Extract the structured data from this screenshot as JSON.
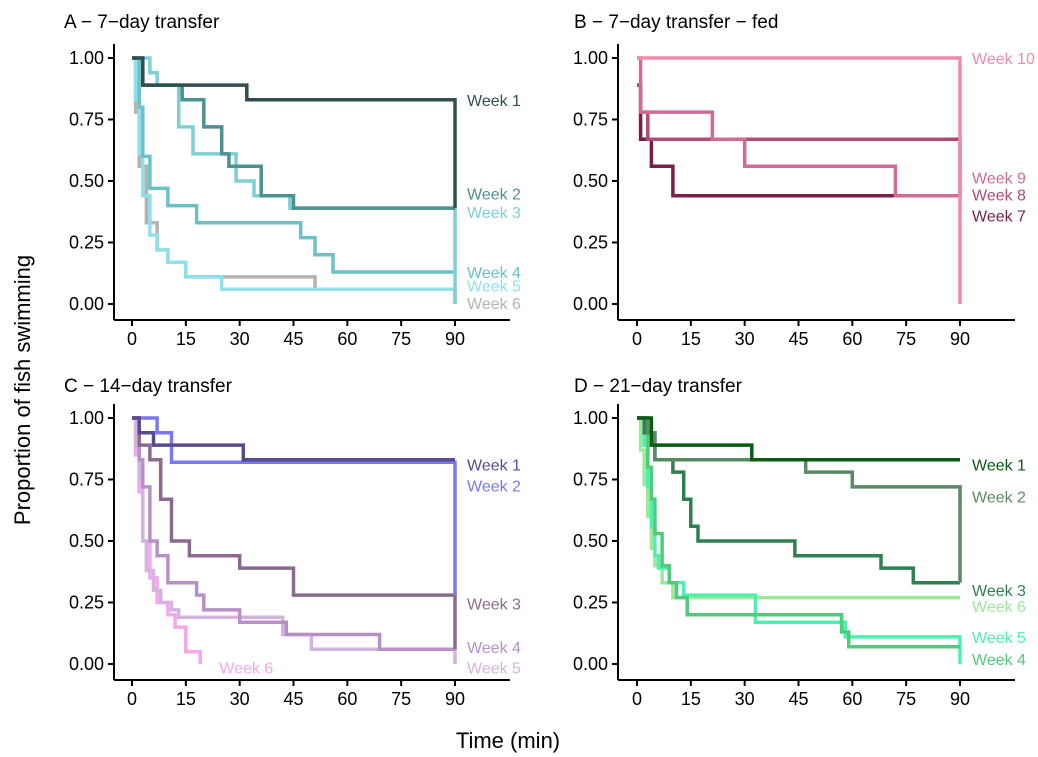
{
  "ylabel": "Proportion of fish swimming",
  "xlabel": "Time (min)",
  "chart_data": [
    {
      "type": "line",
      "step": true,
      "title": "A − 7−day transfer",
      "xlim": [
        0,
        90
      ],
      "ylim": [
        0,
        1
      ],
      "xticks": [
        "0",
        "15",
        "30",
        "45",
        "60",
        "75",
        "90"
      ],
      "yticks": [
        "0.00",
        "0.25",
        "0.50",
        "0.75",
        "1.00"
      ],
      "series": [
        {
          "name": "Week 6",
          "color": "#b3b3b3",
          "x": [
            0,
            1,
            2,
            4,
            7,
            10,
            15,
            25,
            51,
            90,
            90
          ],
          "y": [
            1.0,
            0.78,
            0.56,
            0.33,
            0.22,
            0.17,
            0.11,
            0.11,
            0.06,
            0.06,
            0.0
          ]
        },
        {
          "name": "Week 5",
          "color": "#8fe0ea",
          "x": [
            0,
            1,
            2,
            3,
            5,
            7,
            10,
            15,
            25,
            90
          ],
          "y": [
            1.0,
            0.83,
            0.61,
            0.44,
            0.28,
            0.22,
            0.17,
            0.11,
            0.06,
            0.06
          ]
        },
        {
          "name": "Week 4",
          "color": "#6cc0c8",
          "x": [
            0,
            2,
            3,
            5,
            10,
            18,
            28,
            47,
            51,
            56,
            90
          ],
          "y": [
            1.0,
            0.8,
            0.6,
            0.47,
            0.4,
            0.33,
            0.33,
            0.27,
            0.2,
            0.13,
            0.13
          ]
        },
        {
          "name": "Week 3",
          "color": "#7cd0d6",
          "x": [
            0,
            1,
            5,
            7,
            13,
            17,
            24,
            29,
            34,
            44,
            90,
            90
          ],
          "y": [
            1.0,
            1.0,
            0.94,
            0.89,
            0.72,
            0.61,
            0.61,
            0.5,
            0.44,
            0.39,
            0.39,
            0.0
          ]
        },
        {
          "name": "Week 2",
          "color": "#4e9191",
          "x": [
            0,
            3,
            14,
            20,
            25,
            27,
            36,
            45,
            90
          ],
          "y": [
            1.0,
            0.89,
            0.83,
            0.72,
            0.61,
            0.56,
            0.44,
            0.39,
            0.39
          ]
        },
        {
          "name": "Week 1",
          "color": "#2f4f4f",
          "x": [
            0,
            3,
            32,
            90,
            90
          ],
          "y": [
            1.0,
            0.89,
            0.83,
            0.83,
            0.39
          ]
        }
      ],
      "labels": [
        {
          "text": "Week 1",
          "series": "Week 1",
          "x": 90,
          "y": 0.83
        },
        {
          "text": "Week 2",
          "series": "Week 2",
          "x": 90,
          "y": 0.45
        },
        {
          "text": "Week 3",
          "series": "Week 3",
          "x": 90,
          "y": 0.375
        },
        {
          "text": "Week 4",
          "series": "Week 4",
          "x": 90,
          "y": 0.13
        },
        {
          "text": "Week 5",
          "series": "Week 5",
          "x": 90,
          "y": 0.075
        },
        {
          "text": "Week 6",
          "series": "Week 6",
          "x": 90,
          "y": 0.005
        }
      ]
    },
    {
      "type": "line",
      "step": true,
      "title": "B − 7−day transfer − fed",
      "xlim": [
        0,
        90
      ],
      "ylim": [
        0,
        1
      ],
      "xticks": [
        "0",
        "15",
        "30",
        "45",
        "60",
        "75",
        "90"
      ],
      "yticks": [
        "0.00",
        "0.25",
        "0.50",
        "0.75",
        "1.00"
      ],
      "series": [
        {
          "name": "Week 7",
          "color": "#7a1e4a",
          "x": [
            0,
            1,
            4,
            10,
            23,
            90
          ],
          "y": [
            0.89,
            0.67,
            0.56,
            0.44,
            0.44,
            0.44
          ]
        },
        {
          "name": "Week 8",
          "color": "#b04a78",
          "x": [
            0,
            1,
            3,
            90
          ],
          "y": [
            0.89,
            0.78,
            0.67,
            0.44
          ]
        },
        {
          "name": "Week 9",
          "color": "#cf6b95",
          "x": [
            0,
            1,
            21,
            30,
            72,
            90
          ],
          "y": [
            1.0,
            0.78,
            0.67,
            0.56,
            0.44,
            0.44
          ]
        },
        {
          "name": "Week 10",
          "color": "#f08aaa",
          "x": [
            0,
            0.3,
            90,
            90
          ],
          "y": [
            1.0,
            1.0,
            1.0,
            0.0
          ]
        }
      ],
      "labels": [
        {
          "text": "Week 10",
          "series": "Week 10",
          "x": 90,
          "y": 1.0
        },
        {
          "text": "Week 9",
          "series": "Week 9",
          "x": 90,
          "y": 0.515
        },
        {
          "text": "Week 8",
          "series": "Week 8",
          "x": 90,
          "y": 0.445
        },
        {
          "text": "Week 7",
          "series": "Week 7",
          "x": 90,
          "y": 0.36
        }
      ]
    },
    {
      "type": "line",
      "step": true,
      "title": "C − 14−day transfer",
      "xlim": [
        0,
        90
      ],
      "ylim": [
        0,
        1
      ],
      "xticks": [
        "0",
        "15",
        "30",
        "45",
        "60",
        "75",
        "90"
      ],
      "yticks": [
        "0.00",
        "0.25",
        "0.50",
        "0.75",
        "1.00"
      ],
      "series": [
        {
          "name": "Week 6",
          "color": "#f4a6ee",
          "x": [
            0,
            1,
            2,
            3,
            5,
            7,
            10,
            12,
            15,
            19,
            19
          ],
          "y": [
            1.0,
            0.85,
            0.7,
            0.5,
            0.35,
            0.25,
            0.2,
            0.15,
            0.05,
            0.05,
            0.0
          ]
        },
        {
          "name": "Week 5",
          "color": "#d4b4dc",
          "x": [
            0,
            1,
            2,
            3,
            4,
            6,
            8,
            11,
            13,
            20,
            42,
            50,
            90,
            90
          ],
          "y": [
            1.0,
            0.88,
            0.75,
            0.5,
            0.38,
            0.3,
            0.25,
            0.22,
            0.19,
            0.19,
            0.12,
            0.06,
            0.06,
            0.0
          ]
        },
        {
          "name": "Week 4",
          "color": "#b890c8",
          "x": [
            0,
            2,
            3,
            5,
            7,
            10,
            18,
            20,
            30,
            43,
            47,
            69,
            90
          ],
          "y": [
            1.0,
            0.83,
            0.72,
            0.5,
            0.44,
            0.33,
            0.28,
            0.22,
            0.17,
            0.12,
            0.12,
            0.06,
            0.06
          ]
        },
        {
          "name": "Week 3",
          "color": "#8a6a8e",
          "x": [
            0,
            2,
            5,
            8,
            11,
            16,
            30,
            45,
            90,
            90
          ],
          "y": [
            1.0,
            0.89,
            0.83,
            0.67,
            0.5,
            0.44,
            0.39,
            0.28,
            0.28,
            0.06
          ]
        },
        {
          "name": "Week 2",
          "color": "#7a78f0",
          "x": [
            0,
            4,
            7,
            11,
            62,
            90,
            90
          ],
          "y": [
            1.0,
            1.0,
            0.94,
            0.82,
            0.82,
            0.76,
            0.28
          ]
        },
        {
          "name": "Week 1",
          "color": "#5a4a8a",
          "x": [
            0,
            2,
            6,
            31,
            90
          ],
          "y": [
            1.0,
            0.94,
            0.89,
            0.83,
            0.83
          ]
        }
      ],
      "labels": [
        {
          "text": "Week 1",
          "series": "Week 1",
          "x": 90,
          "y": 0.81
        },
        {
          "text": "Week 2",
          "series": "Week 2",
          "x": 90,
          "y": 0.725
        },
        {
          "text": "Week 3",
          "series": "Week 3",
          "x": 90,
          "y": 0.245
        },
        {
          "text": "Week 4",
          "series": "Week 4",
          "x": 90,
          "y": 0.07
        },
        {
          "text": "Week 5",
          "series": "Week 5",
          "x": 90,
          "y": -0.015
        },
        {
          "text": "Week 6",
          "series": "Week 6",
          "x": 21,
          "y": -0.015
        }
      ]
    },
    {
      "type": "line",
      "step": true,
      "title": "D − 21−day transfer",
      "xlim": [
        0,
        90
      ],
      "ylim": [
        0,
        1
      ],
      "xticks": [
        "0",
        "15",
        "30",
        "45",
        "60",
        "75",
        "90"
      ],
      "yticks": [
        "0.00",
        "0.25",
        "0.50",
        "0.75",
        "1.00"
      ],
      "series": [
        {
          "name": "Week 6",
          "color": "#9ee89a",
          "x": [
            0,
            1,
            2,
            3,
            4,
            5,
            7,
            10,
            13,
            90
          ],
          "y": [
            1.0,
            0.87,
            0.73,
            0.6,
            0.47,
            0.4,
            0.33,
            0.27,
            0.27,
            0.27
          ]
        },
        {
          "name": "Week 5",
          "color": "#4ef0b0",
          "x": [
            0,
            2,
            3,
            4,
            5,
            6,
            9,
            13,
            33,
            58,
            90,
            90
          ],
          "y": [
            1.0,
            0.89,
            0.72,
            0.56,
            0.44,
            0.39,
            0.33,
            0.28,
            0.17,
            0.11,
            0.11,
            0.0
          ]
        },
        {
          "name": "Week 4",
          "color": "#4ecc7a",
          "x": [
            0,
            3,
            4,
            5,
            7,
            9,
            11,
            14,
            24,
            57,
            59,
            90
          ],
          "y": [
            1.0,
            0.8,
            0.67,
            0.53,
            0.4,
            0.33,
            0.27,
            0.2,
            0.2,
            0.13,
            0.07,
            0.07
          ]
        },
        {
          "name": "Week 3",
          "color": "#2e8050",
          "x": [
            0,
            2,
            5,
            10,
            13,
            15,
            17,
            32,
            44,
            68,
            77,
            90
          ],
          "y": [
            1.0,
            0.94,
            0.83,
            0.78,
            0.67,
            0.56,
            0.5,
            0.5,
            0.44,
            0.39,
            0.33,
            0.33
          ]
        },
        {
          "name": "Week 2",
          "color": "#5a8a62",
          "x": [
            0,
            1,
            3,
            5,
            47,
            60,
            90,
            90
          ],
          "y": [
            1.0,
            1.0,
            0.94,
            0.83,
            0.78,
            0.72,
            0.72,
            0.33
          ]
        },
        {
          "name": "Week 1",
          "color": "#0a5a14",
          "x": [
            0,
            1,
            4,
            32,
            90
          ],
          "y": [
            1.0,
            1.0,
            0.89,
            0.83,
            0.83
          ]
        }
      ],
      "labels": [
        {
          "text": "Week 1",
          "series": "Week 1",
          "x": 90,
          "y": 0.81
        },
        {
          "text": "Week 2",
          "series": "Week 2",
          "x": 90,
          "y": 0.68
        },
        {
          "text": "Week 3",
          "series": "Week 3",
          "x": 90,
          "y": 0.3
        },
        {
          "text": "Week 6",
          "series": "Week 6",
          "x": 90,
          "y": 0.235
        },
        {
          "text": "Week 5",
          "series": "Week 5",
          "x": 90,
          "y": 0.11
        },
        {
          "text": "Week 4",
          "series": "Week 4",
          "x": 90,
          "y": 0.02
        }
      ]
    }
  ]
}
